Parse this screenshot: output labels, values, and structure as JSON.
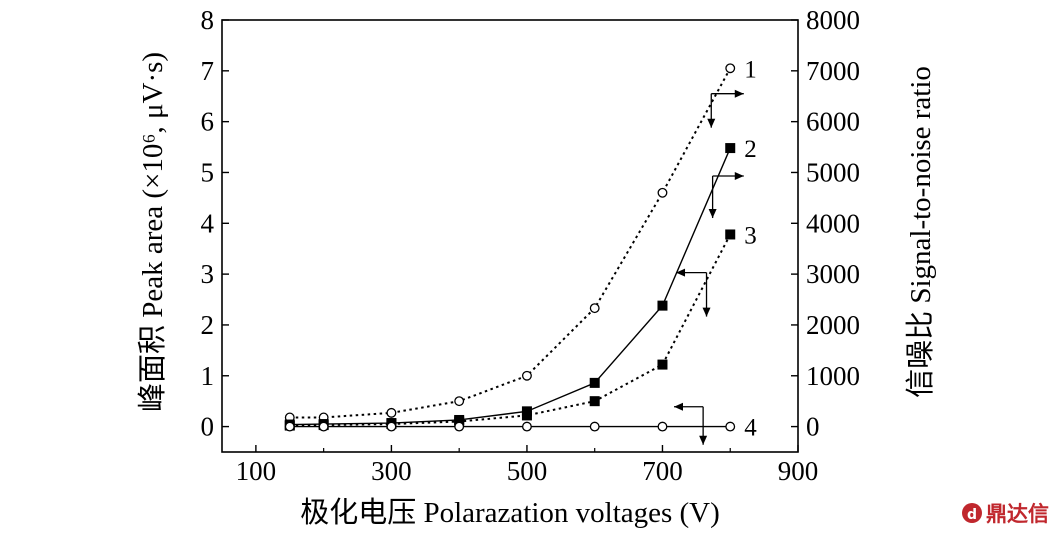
{
  "chart_data": {
    "type": "line",
    "x": [
      150,
      200,
      300,
      400,
      500,
      600,
      700,
      800
    ],
    "xlabel": "极化电压 Polarazation voltages (V)",
    "ylabel_left": "峰面积 Peak area (×10⁶, μV·s)",
    "ylabel_right": "信噪比 Signal-to-noise ratio",
    "xlim": [
      50,
      900
    ],
    "ylim_left": [
      -0.5,
      8
    ],
    "ylim_right": [
      -500,
      8000
    ],
    "xticks": [
      "100",
      "300",
      "500",
      "700",
      "900"
    ],
    "yticks_left": [
      "0",
      "1",
      "2",
      "3",
      "4",
      "5",
      "6",
      "7",
      "8"
    ],
    "yticks_right": [
      "0",
      "1000",
      "2000",
      "3000",
      "4000",
      "5000",
      "6000",
      "7000",
      "8000"
    ],
    "grid": false,
    "series": [
      {
        "name": "1",
        "axis": "left",
        "marker": "open-circle",
        "line": "dotted",
        "values": [
          0.18,
          0.18,
          0.27,
          0.5,
          1.0,
          2.33,
          4.6,
          7.05
        ]
      },
      {
        "name": "2",
        "axis": "left",
        "marker": "filled-square",
        "line": "solid",
        "values": [
          0.04,
          0.05,
          0.07,
          0.13,
          0.3,
          0.86,
          2.38,
          5.48
        ]
      },
      {
        "name": "3",
        "axis": "right",
        "marker": "filled-square",
        "line": "dotted",
        "values": [
          20,
          30,
          50,
          100,
          220,
          500,
          1220,
          3780
        ]
      },
      {
        "name": "4",
        "axis": "right",
        "marker": "open-circle",
        "line": "solid",
        "values": [
          0,
          0,
          0,
          0,
          0,
          0,
          0,
          0
        ]
      }
    ]
  },
  "watermark": {
    "text": "鼎达信",
    "color": "#c0272d"
  }
}
